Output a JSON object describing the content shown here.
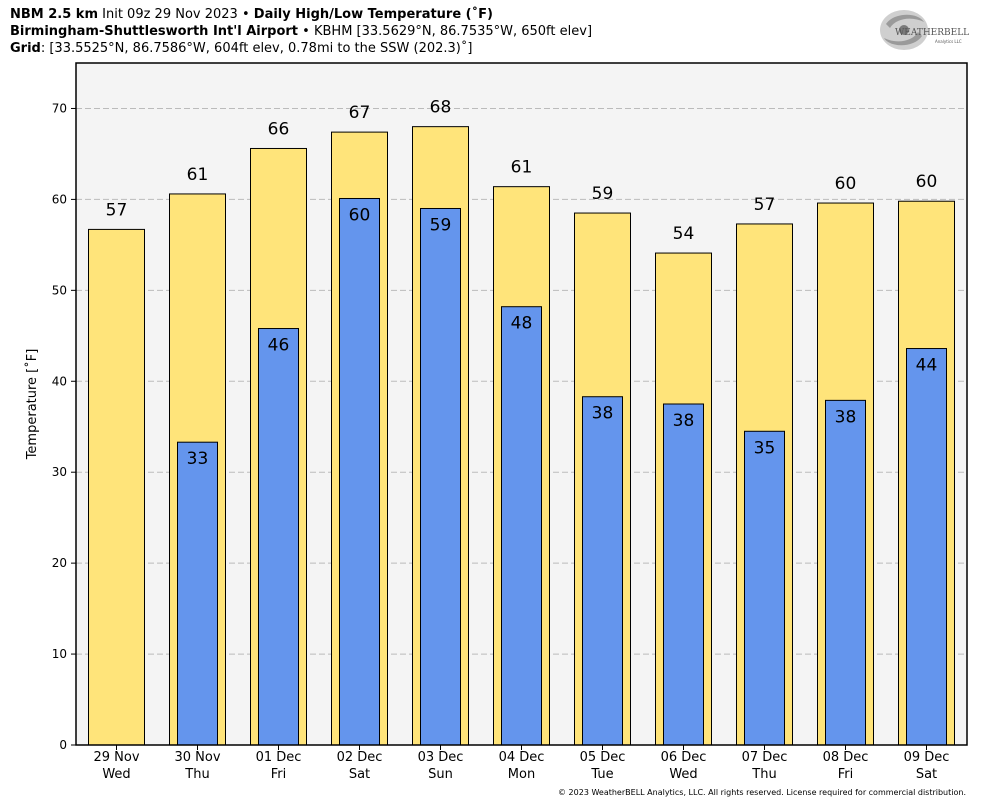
{
  "header": {
    "line1": {
      "model": "NBM 2.5 km",
      "init": "Init 09z 29 Nov 2023",
      "sep": "•",
      "product": "Daily High/Low Temperature (˚F)"
    },
    "line2": {
      "station": "Birmingham-Shuttlesworth Int'l Airport",
      "sep": "•",
      "details": "KBHM [33.5629°N, 86.7535°W, 650ft elev]"
    },
    "line3": {
      "label": "Grid",
      "details": ": [33.5525°N, 86.7586°W, 604ft elev, 0.78mi to the SSW (202.3)˚]"
    }
  },
  "logo": {
    "text": "WEATHERBELL",
    "sub": "Analytics LLC",
    "icon": "hurricane-swirl-icon"
  },
  "copyright": "© 2023 WeatherBELL Analytics, LLC. All rights reserved. License required for commercial distribution.",
  "colors": {
    "high": "#FFE47A",
    "low": "#6495ED",
    "plot_bg": "#F4F4F4",
    "grid": "#BBBBBB"
  },
  "chart_data": {
    "type": "bar",
    "ylabel": "Temperature [˚F]",
    "ylim": [
      0,
      75
    ],
    "yticks": [
      0,
      10,
      20,
      30,
      40,
      50,
      60,
      70
    ],
    "grid": true,
    "categories": [
      {
        "date": "29 Nov",
        "day": "Wed"
      },
      {
        "date": "30 Nov",
        "day": "Thu"
      },
      {
        "date": "01 Dec",
        "day": "Fri"
      },
      {
        "date": "02 Dec",
        "day": "Sat"
      },
      {
        "date": "03 Dec",
        "day": "Sun"
      },
      {
        "date": "04 Dec",
        "day": "Mon"
      },
      {
        "date": "05 Dec",
        "day": "Tue"
      },
      {
        "date": "06 Dec",
        "day": "Wed"
      },
      {
        "date": "07 Dec",
        "day": "Thu"
      },
      {
        "date": "08 Dec",
        "day": "Fri"
      },
      {
        "date": "09 Dec",
        "day": "Sat"
      }
    ],
    "series": [
      {
        "key": "high",
        "values": [
          56.7,
          60.6,
          65.6,
          67.4,
          68.0,
          61.4,
          58.5,
          54.1,
          57.3,
          59.6,
          59.8
        ],
        "labels": [
          "57",
          "61",
          "66",
          "67",
          "68",
          "61",
          "59",
          "54",
          "57",
          "60",
          "60"
        ]
      },
      {
        "key": "low",
        "values": [
          null,
          33.3,
          45.8,
          60.1,
          59.0,
          48.2,
          38.3,
          37.5,
          34.5,
          37.9,
          43.6
        ],
        "labels": [
          null,
          "33",
          "46",
          "60",
          "59",
          "48",
          "38",
          "38",
          "35",
          "38",
          "44"
        ]
      }
    ]
  }
}
